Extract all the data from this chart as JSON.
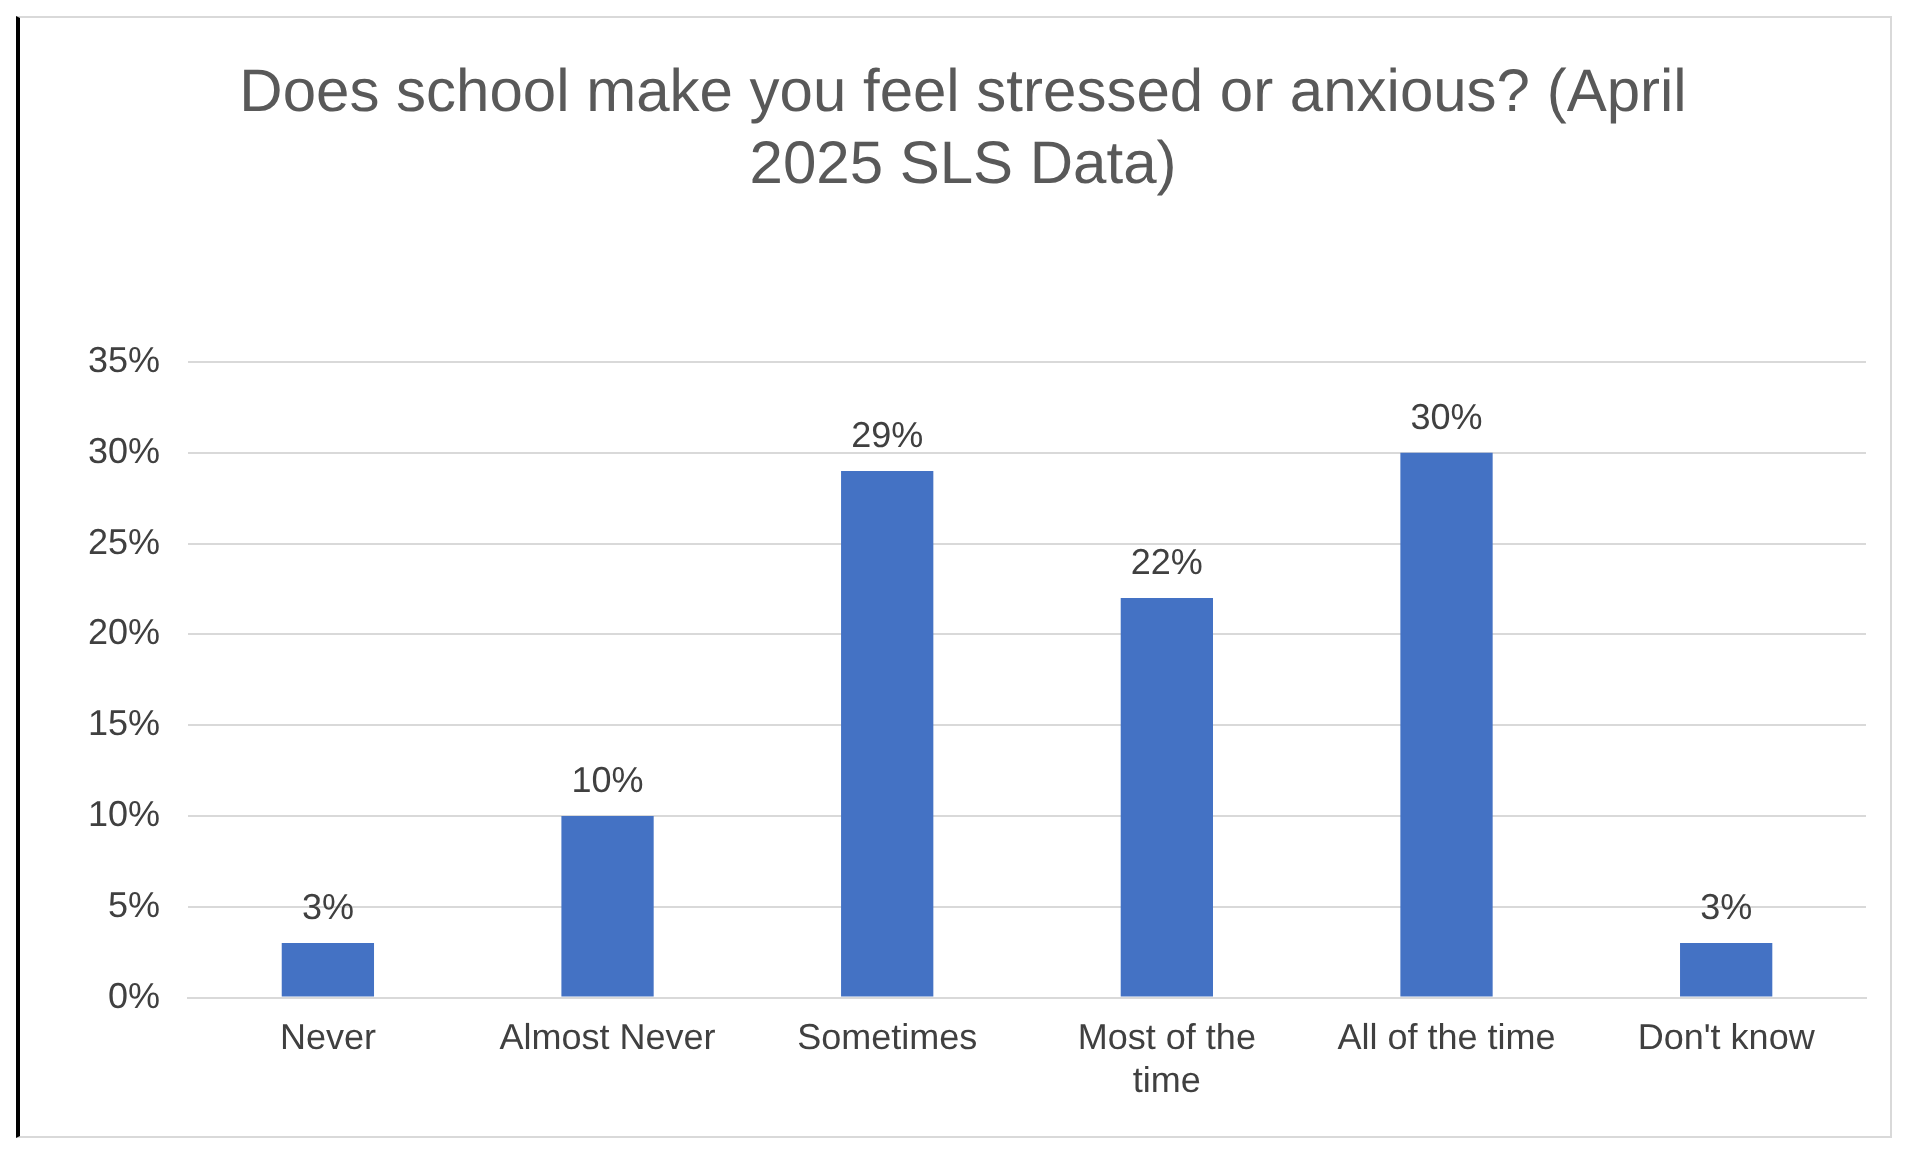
{
  "chart_data": {
    "type": "bar",
    "title": "Does school make you feel stressed or anxious? (April 2025 SLS Data)",
    "categories": [
      "Never",
      "Almost Never",
      "Sometimes",
      "Most of the time",
      "All of the time",
      "Don't know"
    ],
    "values": [
      3,
      10,
      29,
      22,
      30,
      3
    ],
    "value_labels": [
      "3%",
      "10%",
      "29%",
      "22%",
      "30%",
      "3%"
    ],
    "color": "#4472c4",
    "ylim": [
      0,
      35
    ],
    "yticks": [
      {
        "value": 0,
        "label": "0%"
      },
      {
        "value": 5,
        "label": "5%"
      },
      {
        "value": 10,
        "label": "10%"
      },
      {
        "value": 15,
        "label": "15%"
      },
      {
        "value": 20,
        "label": "20%"
      },
      {
        "value": 25,
        "label": "25%"
      },
      {
        "value": 30,
        "label": "30%"
      },
      {
        "value": 35,
        "label": "35%"
      }
    ],
    "grid": "y",
    "legend": false
  }
}
